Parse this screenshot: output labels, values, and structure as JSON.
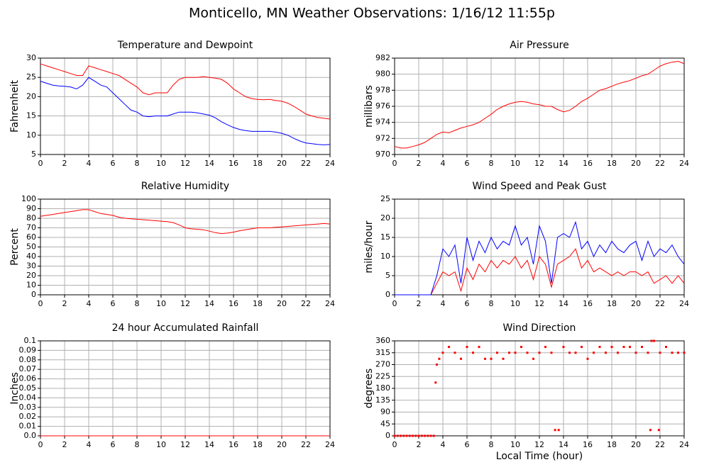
{
  "title": "Monticello, MN Weather Observations: 1/16/12 11:55p",
  "chart_data": [
    {
      "type": "line",
      "title": "Temperature and Dewpoint",
      "ylabel": "Fahrenheit",
      "x": [
        0,
        0.5,
        1,
        1.5,
        2,
        2.5,
        3,
        3.5,
        4,
        4.5,
        5,
        5.5,
        6,
        6.5,
        7,
        7.5,
        8,
        8.5,
        9,
        9.5,
        10,
        10.5,
        11,
        11.5,
        12,
        12.5,
        13,
        13.5,
        14,
        14.5,
        15,
        15.5,
        16,
        16.5,
        17,
        17.5,
        18,
        18.5,
        19,
        19.5,
        20,
        20.5,
        21,
        21.5,
        22,
        22.5,
        23,
        23.5,
        24
      ],
      "series": [
        {
          "color": "#ff0000",
          "values": [
            28.5,
            28,
            27.5,
            27,
            26.5,
            26,
            25.5,
            25.5,
            28,
            27.5,
            27,
            26.5,
            26,
            25.5,
            24.5,
            23.5,
            22.5,
            21,
            20.5,
            21,
            21,
            21,
            23,
            24.5,
            25,
            25,
            25,
            25.2,
            25,
            24.8,
            24.5,
            23.5,
            22,
            21,
            20,
            19.5,
            19.3,
            19.2,
            19.3,
            19,
            18.8,
            18.3,
            17.5,
            16.5,
            15.5,
            15,
            14.6,
            14.4,
            14.2
          ]
        },
        {
          "color": "#0000ff",
          "values": [
            24,
            23.5,
            23,
            22.8,
            22.7,
            22.5,
            22,
            23,
            25,
            24,
            23,
            22.5,
            21,
            19.5,
            18,
            16.5,
            16,
            15,
            14.8,
            15,
            15,
            15,
            15.5,
            16,
            16,
            16,
            15.8,
            15.5,
            15.2,
            14.5,
            13.5,
            12.7,
            12,
            11.5,
            11.2,
            11,
            11,
            11,
            11,
            10.8,
            10.5,
            10,
            9.2,
            8.5,
            8,
            7.8,
            7.6,
            7.5,
            7.6
          ]
        }
      ],
      "xlim": [
        0,
        24
      ],
      "xticks": [
        0,
        2,
        4,
        6,
        8,
        10,
        12,
        14,
        16,
        18,
        20,
        22,
        24
      ],
      "ylim": [
        5,
        30
      ],
      "yticks": [
        5,
        10,
        15,
        20,
        25,
        30
      ],
      "grid": true
    },
    {
      "type": "line",
      "title": "Air Pressure",
      "ylabel": "millibars",
      "x": [
        0,
        0.5,
        1,
        1.5,
        2,
        2.5,
        3,
        3.5,
        4,
        4.5,
        5,
        5.5,
        6,
        6.5,
        7,
        7.5,
        8,
        8.5,
        9,
        9.5,
        10,
        10.5,
        11,
        11.5,
        12,
        12.5,
        13,
        13.5,
        14,
        14.5,
        15,
        15.5,
        16,
        16.5,
        17,
        17.5,
        18,
        18.5,
        19,
        19.5,
        20,
        20.5,
        21,
        21.5,
        22,
        22.5,
        23,
        23.5,
        24
      ],
      "series": [
        {
          "color": "#ff0000",
          "values": [
            971,
            970.8,
            970.8,
            971,
            971.2,
            971.5,
            972,
            972.5,
            972.8,
            972.7,
            973,
            973.3,
            973.5,
            973.7,
            974,
            974.5,
            975,
            975.6,
            976,
            976.3,
            976.5,
            976.6,
            976.5,
            976.3,
            976.2,
            976,
            976,
            975.6,
            975.3,
            975.5,
            976,
            976.6,
            977,
            977.5,
            978,
            978.2,
            978.5,
            978.8,
            979,
            979.2,
            979.5,
            979.8,
            980,
            980.5,
            981,
            981.3,
            981.5,
            981.6,
            981.3
          ]
        }
      ],
      "xlim": [
        0,
        24
      ],
      "xticks": [
        0,
        2,
        4,
        6,
        8,
        10,
        12,
        14,
        16,
        18,
        20,
        22,
        24
      ],
      "ylim": [
        970,
        982
      ],
      "yticks": [
        970,
        972,
        974,
        976,
        978,
        980,
        982
      ],
      "grid": true
    },
    {
      "type": "line",
      "title": "Relative Humidity",
      "ylabel": "Percent",
      "x": [
        0,
        0.5,
        1,
        1.5,
        2,
        2.5,
        3,
        3.5,
        4,
        4.5,
        5,
        5.5,
        6,
        6.5,
        7,
        7.5,
        8,
        8.5,
        9,
        9.5,
        10,
        10.5,
        11,
        11.5,
        12,
        12.5,
        13,
        13.5,
        14,
        14.5,
        15,
        15.5,
        16,
        16.5,
        17,
        17.5,
        18,
        18.5,
        19,
        19.5,
        20,
        20.5,
        21,
        21.5,
        22,
        22.5,
        23,
        23.5,
        24
      ],
      "series": [
        {
          "color": "#ff0000",
          "values": [
            82,
            83,
            84,
            85,
            86,
            87,
            88,
            89,
            89,
            87,
            85,
            84,
            83,
            81,
            80,
            79.5,
            79,
            78.5,
            78,
            77.5,
            77,
            76.5,
            75.5,
            73,
            70,
            69,
            68.5,
            68,
            66.5,
            65,
            64,
            64.5,
            65.5,
            67,
            68,
            69,
            70,
            70,
            70,
            70.5,
            71,
            71.5,
            72,
            72.5,
            73,
            73.5,
            74,
            74.5,
            74
          ]
        }
      ],
      "xlim": [
        0,
        24
      ],
      "xticks": [
        0,
        2,
        4,
        6,
        8,
        10,
        12,
        14,
        16,
        18,
        20,
        22,
        24
      ],
      "ylim": [
        0,
        100
      ],
      "yticks": [
        0,
        10,
        20,
        30,
        40,
        50,
        60,
        70,
        80,
        90,
        100
      ],
      "grid": true
    },
    {
      "type": "line",
      "title": "Wind Speed and Peak Gust",
      "ylabel": "miles/hour",
      "x": [
        0,
        0.5,
        1,
        1.5,
        2,
        2.5,
        3,
        3.5,
        4,
        4.5,
        5,
        5.5,
        6,
        6.5,
        7,
        7.5,
        8,
        8.5,
        9,
        9.5,
        10,
        10.5,
        11,
        11.5,
        12,
        12.5,
        13,
        13.5,
        14,
        14.5,
        15,
        15.5,
        16,
        16.5,
        17,
        17.5,
        18,
        18.5,
        19,
        19.5,
        20,
        20.5,
        21,
        21.5,
        22,
        22.5,
        23,
        23.5,
        24
      ],
      "series": [
        {
          "color": "#ff0000",
          "values": [
            0,
            0,
            0,
            0,
            0,
            0,
            0,
            3,
            6,
            5,
            6,
            1,
            7,
            4,
            8,
            6,
            9,
            7,
            9,
            8,
            10,
            7,
            9,
            4,
            10,
            8,
            2,
            8,
            9,
            10,
            12,
            7,
            9,
            6,
            7,
            6,
            5,
            6,
            5,
            6,
            6,
            5,
            6,
            3,
            4,
            5,
            3,
            5,
            3
          ]
        },
        {
          "color": "#0000ff",
          "values": [
            0,
            0,
            0,
            0,
            0,
            0,
            0,
            5,
            12,
            10,
            13,
            3,
            15,
            9,
            14,
            11,
            15,
            12,
            14,
            13,
            18,
            13,
            15,
            8,
            18,
            14,
            3,
            15,
            16,
            15,
            19,
            12,
            14,
            10,
            13,
            11,
            14,
            12,
            11,
            13,
            14,
            9,
            14,
            10,
            12,
            11,
            13,
            10,
            8
          ]
        }
      ],
      "xlim": [
        0,
        24
      ],
      "xticks": [
        0,
        2,
        4,
        6,
        8,
        10,
        12,
        14,
        16,
        18,
        20,
        22,
        24
      ],
      "ylim": [
        0,
        25
      ],
      "yticks": [
        0,
        5,
        10,
        15,
        20,
        25
      ],
      "grid": true
    },
    {
      "type": "line",
      "title": "24 hour Accumulated Rainfall",
      "ylabel": "Inches",
      "x": [
        0,
        24
      ],
      "series": [
        {
          "color": "#ff0000",
          "values": [
            0,
            0
          ]
        }
      ],
      "xlim": [
        0,
        24
      ],
      "xticks": [
        0,
        2,
        4,
        6,
        8,
        10,
        12,
        14,
        16,
        18,
        20,
        22,
        24
      ],
      "ylim": [
        0,
        0.1
      ],
      "yticks": [
        {
          "value": 0,
          "label": "0.0"
        },
        0.01,
        0.02,
        0.03,
        0.04,
        0.05,
        0.06,
        0.07,
        0.08,
        0.09,
        0.1
      ],
      "grid": true
    },
    {
      "type": "scatter",
      "title": "Wind Direction",
      "ylabel": "degrees",
      "xlabel": "Local Time (hour)",
      "x": [
        0,
        0.25,
        0.5,
        0.75,
        1,
        1.25,
        1.5,
        1.75,
        2,
        2.25,
        2.5,
        2.75,
        3,
        3.25,
        3.4,
        3.5,
        3.7,
        4,
        4.5,
        5,
        5.5,
        6,
        6.5,
        7,
        7.5,
        8,
        8.5,
        9,
        9.5,
        10,
        10.5,
        11,
        11.5,
        12,
        12.5,
        13,
        13.3,
        13.6,
        14,
        14.5,
        15,
        15.5,
        16,
        16.5,
        17,
        17.5,
        18,
        18.5,
        19,
        19.5,
        20,
        20.5,
        21,
        21.2,
        21.3,
        21.5,
        21.9,
        22,
        22.5,
        23,
        23.5,
        24
      ],
      "series": [
        {
          "color": "#ff0000",
          "values": [
            0,
            0,
            0,
            0,
            0,
            0,
            0,
            0,
            0,
            0,
            0,
            0,
            0,
            0,
            202,
            270,
            292,
            315,
            337,
            315,
            292,
            337,
            315,
            337,
            292,
            292,
            315,
            292,
            315,
            315,
            337,
            315,
            292,
            315,
            337,
            315,
            22,
            22,
            337,
            315,
            315,
            337,
            292,
            315,
            337,
            315,
            337,
            315,
            337,
            337,
            315,
            337,
            315,
            22,
            360,
            360,
            22,
            315,
            337,
            315,
            315,
            315
          ]
        }
      ],
      "xlim": [
        0,
        24
      ],
      "xticks": [
        0,
        2,
        4,
        6,
        8,
        10,
        12,
        14,
        16,
        18,
        20,
        22,
        24
      ],
      "ylim": [
        0,
        360
      ],
      "yticks": [
        0,
        45,
        90,
        135,
        180,
        225,
        270,
        315,
        360
      ],
      "grid": true
    }
  ]
}
